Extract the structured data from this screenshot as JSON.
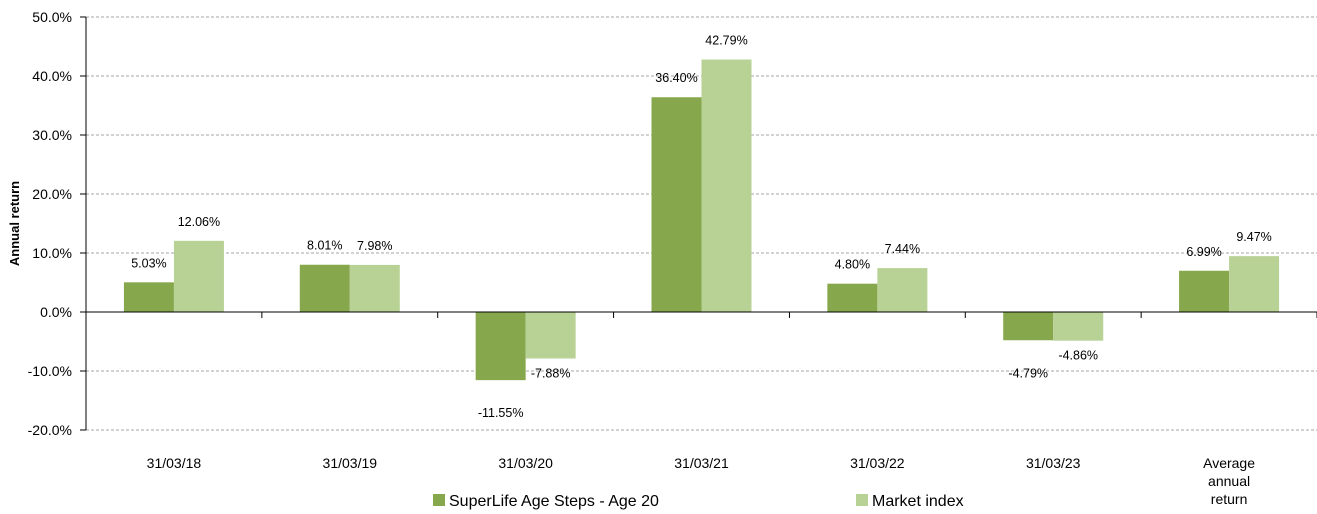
{
  "chart_data": {
    "type": "bar",
    "title": "",
    "xlabel": "",
    "ylabel": "Annual return",
    "ylim": [
      -20,
      50
    ],
    "ytick_step": 10,
    "ytick_labels": [
      "-20.0%",
      "-10.0%",
      "0.0%",
      "10.0%",
      "20.0%",
      "30.0%",
      "40.0%",
      "50.0%"
    ],
    "grid": "horizontal dashed",
    "legend_position": "bottom",
    "categories": [
      [
        "31/03/18"
      ],
      [
        "31/03/19"
      ],
      [
        "31/03/20"
      ],
      [
        "31/03/21"
      ],
      [
        "31/03/22"
      ],
      [
        "31/03/23"
      ],
      [
        "Average",
        "annual",
        "return"
      ]
    ],
    "series": [
      {
        "name": "SuperLife Age Steps - Age 20",
        "color": "#86a74b",
        "values": [
          5.03,
          8.01,
          -11.55,
          36.4,
          4.8,
          -4.79,
          6.99
        ],
        "labels": [
          "5.03%",
          "8.01%",
          "-11.55%",
          "36.40%",
          "4.80%",
          "-4.79%",
          "6.99%"
        ]
      },
      {
        "name": "Market index",
        "color": "#b8d195",
        "values": [
          12.06,
          7.98,
          -7.88,
          42.79,
          7.44,
          -4.86,
          9.47
        ],
        "labels": [
          "12.06%",
          "7.98%",
          "-7.88%",
          "42.79%",
          "7.44%",
          "-4.86%",
          "9.47%"
        ]
      }
    ]
  }
}
